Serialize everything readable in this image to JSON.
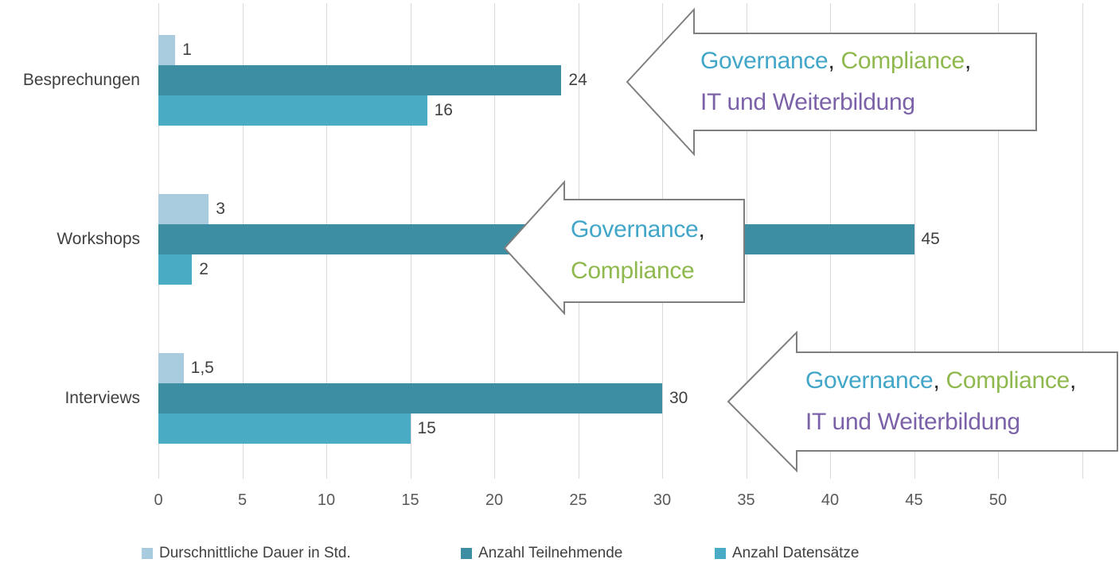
{
  "chart_data": {
    "type": "bar",
    "orientation": "horizontal",
    "categories": [
      "Besprechungen",
      "Workshops",
      "Interviews"
    ],
    "series": [
      {
        "key": "dauer",
        "name": "Durschnittliche Dauer in Std.",
        "color": "#a9cbde",
        "values": [
          1,
          3,
          1.5
        ],
        "value_labels": [
          "1",
          "3",
          "1,5"
        ]
      },
      {
        "key": "teilnehmende",
        "name": "Anzahl Teilnehmende",
        "color": "#3d8ea3",
        "values": [
          24,
          45,
          30
        ],
        "value_labels": [
          "24",
          "45",
          "30"
        ]
      },
      {
        "key": "datensaetze",
        "name": "Anzahl Datensätze",
        "color": "#4aabc5",
        "values": [
          16,
          2,
          15
        ],
        "value_labels": [
          "16",
          "2",
          "15"
        ]
      }
    ],
    "x_ticks": [
      0,
      5,
      10,
      15,
      20,
      25,
      30,
      35,
      40,
      45,
      50
    ],
    "x_tick_labels": [
      "0",
      "5",
      "10",
      "15",
      "20",
      "25",
      "30",
      "35",
      "40",
      "45",
      "50"
    ],
    "xlim": [
      0,
      55
    ],
    "grid": true,
    "legend_position": "bottom"
  },
  "callouts": [
    {
      "target": "Besprechungen",
      "lines": [
        [
          {
            "text": "Governance",
            "color": "#41a6c8"
          },
          {
            "text": ", ",
            "color": "#262626"
          },
          {
            "text": "Compliance",
            "color": "#8fb94e"
          },
          {
            "text": ",",
            "color": "#262626"
          }
        ],
        [
          {
            "text": "IT und Weiterbildung",
            "color": "#7b62a8"
          }
        ]
      ]
    },
    {
      "target": "Workshops",
      "lines": [
        [
          {
            "text": "Governance",
            "color": "#41a6c8"
          },
          {
            "text": ",",
            "color": "#262626"
          }
        ],
        [
          {
            "text": "Compliance",
            "color": "#8fb94e"
          }
        ]
      ]
    },
    {
      "target": "Interviews",
      "lines": [
        [
          {
            "text": "Governance",
            "color": "#41a6c8"
          },
          {
            "text": ", ",
            "color": "#262626"
          },
          {
            "text": "Compliance",
            "color": "#8fb94e"
          },
          {
            "text": ",",
            "color": "#262626"
          }
        ],
        [
          {
            "text": "IT und Weiterbildung",
            "color": "#7b62a8"
          }
        ]
      ]
    }
  ],
  "colors": {
    "grid": "#d9d9d9",
    "value_label": "#404040",
    "category_label": "#404040",
    "tick_label": "#595959",
    "arrow_border": "#7f7f7f",
    "arrow_fill": "#ffffff"
  }
}
